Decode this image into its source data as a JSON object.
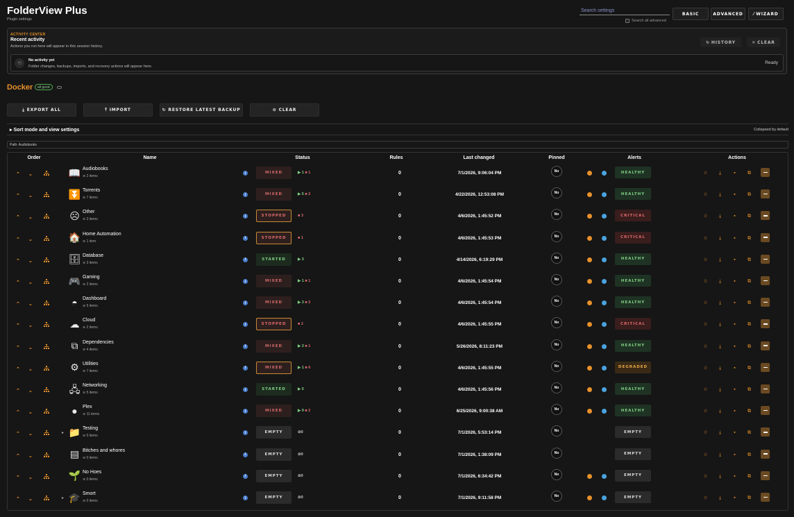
{
  "header": {
    "title": "FolderView Plus",
    "subtitle": "Plugin settings",
    "search_placeholder": "Search settings",
    "search_all_label": "Search all advanced",
    "modes": [
      "BASIC",
      "ADVANCED",
      "WIZARD"
    ]
  },
  "activity": {
    "kicker": "ACTIVITY CENTER",
    "title": "Recent activity",
    "desc": "Actions you run here will appear in this session history.",
    "history_label": "HISTORY",
    "clear_label": "CLEAR",
    "empty_title": "No activity yet",
    "empty_desc": "Folder changes, backups, imports, and recovery actions will appear here.",
    "state": "Ready"
  },
  "docker": {
    "title": "Docker",
    "badge": "all good",
    "buttons": [
      "EXPORT ALL",
      "IMPORT",
      "RESTORE LATEST BACKUP",
      "CLEAR"
    ],
    "sort_label": "Sort mode and view settings",
    "sort_note": "Collapsed by default",
    "path": "Path: Audiobooks"
  },
  "columns": [
    "Order",
    "Name",
    "Status",
    "Rules",
    "Last changed",
    "Pinned",
    "Alerts",
    "Actions"
  ],
  "pinned_label": "No",
  "rows": [
    {
      "name": "Audiobooks",
      "count": "2 items",
      "icon": "book-icon",
      "glyph": "📖",
      "status": "MIXED",
      "status_kind": "st-mixed",
      "run": "1",
      "stop": "1",
      "rules": "0",
      "changed": "7/1/2026, 9:06:04 PM",
      "alert": "HEALTHY",
      "alert_kind": "al-healthy",
      "expander": false,
      "indicators": true
    },
    {
      "name": "Torrents",
      "count": "7 items",
      "icon": "download-icon",
      "glyph": "⏬",
      "status": "MIXED",
      "status_kind": "st-mixed",
      "run": "5",
      "stop": "2",
      "rules": "0",
      "changed": "4/22/2026, 12:53:08 PM",
      "alert": "HEALTHY",
      "alert_kind": "al-healthy",
      "expander": false,
      "indicators": true
    },
    {
      "name": "Other",
      "count": "3 items",
      "icon": "misc-icon",
      "glyph": "☹",
      "status": "STOPPED",
      "status_kind": "st-stopped",
      "run": "",
      "stop": "3",
      "rules": "0",
      "changed": "4/6/2026, 1:45:52 PM",
      "alert": "CRITICAL",
      "alert_kind": "al-critical",
      "expander": false,
      "indicators": true
    },
    {
      "name": "Home Automation",
      "count": "1 item",
      "icon": "home-icon",
      "glyph": "🏠",
      "status": "STOPPED",
      "status_kind": "st-stopped",
      "run": "",
      "stop": "1",
      "rules": "0",
      "changed": "4/6/2026, 1:45:53 PM",
      "alert": "CRITICAL",
      "alert_kind": "al-critical",
      "expander": false,
      "indicators": true
    },
    {
      "name": "Database",
      "count": "3 items",
      "icon": "database-icon",
      "glyph": "🗄",
      "status": "STARTED",
      "status_kind": "st-started",
      "run": "3",
      "stop": "",
      "rules": "0",
      "changed": "4/14/2026, 6:19:29 PM",
      "alert": "HEALTHY",
      "alert_kind": "al-healthy",
      "expander": false,
      "indicators": true
    },
    {
      "name": "Gaming",
      "count": "2 items",
      "icon": "gamepad-icon",
      "glyph": "🎮",
      "status": "MIXED",
      "status_kind": "st-mixed",
      "run": "1",
      "stop": "1",
      "rules": "0",
      "changed": "4/6/2026, 1:45:54 PM",
      "alert": "HEALTHY",
      "alert_kind": "al-healthy",
      "expander": false,
      "indicators": true
    },
    {
      "name": "Dashboard",
      "count": "5 items",
      "icon": "gauge-icon",
      "glyph": "◓",
      "status": "MIXED",
      "status_kind": "st-mixed",
      "run": "3",
      "stop": "2",
      "rules": "0",
      "changed": "4/6/2026, 1:45:54 PM",
      "alert": "HEALTHY",
      "alert_kind": "al-healthy",
      "expander": false,
      "indicators": true
    },
    {
      "name": "Cloud",
      "count": "2 items",
      "icon": "cloud-icon",
      "glyph": "☁",
      "status": "STOPPED",
      "status_kind": "st-stopped",
      "run": "",
      "stop": "2",
      "rules": "0",
      "changed": "4/6/2026, 1:45:55 PM",
      "alert": "CRITICAL",
      "alert_kind": "al-critical",
      "expander": false,
      "indicators": true
    },
    {
      "name": "Dependencies",
      "count": "4 items",
      "icon": "puzzle-icon",
      "glyph": "⧉",
      "status": "MIXED",
      "status_kind": "st-mixed",
      "run": "3",
      "stop": "1",
      "rules": "0",
      "changed": "5/26/2026, 8:11:23 PM",
      "alert": "HEALTHY",
      "alert_kind": "al-healthy",
      "expander": false,
      "indicators": true
    },
    {
      "name": "Utilities",
      "count": "7 items",
      "icon": "cog-icon",
      "glyph": "⚙",
      "status": "MIXED",
      "status_kind": "st-mixed-o",
      "run": "1",
      "stop": "6",
      "rules": "0",
      "changed": "4/6/2026, 1:45:55 PM",
      "alert": "DEGRADED",
      "alert_kind": "al-degraded",
      "expander": false,
      "indicators": true
    },
    {
      "name": "Networking",
      "count": "5 items",
      "icon": "network-icon",
      "glyph": "🖧",
      "status": "STARTED",
      "status_kind": "st-started",
      "run": "5",
      "stop": "",
      "rules": "0",
      "changed": "4/6/2026, 1:45:56 PM",
      "alert": "HEALTHY",
      "alert_kind": "al-healthy",
      "expander": false,
      "indicators": true
    },
    {
      "name": "Plex",
      "count": "11 items",
      "icon": "plex-icon",
      "glyph": "●",
      "status": "MIXED",
      "status_kind": "st-mixed",
      "run": "9",
      "stop": "2",
      "rules": "0",
      "changed": "6/25/2026, 9:00:38 AM",
      "alert": "HEALTHY",
      "alert_kind": "al-healthy",
      "expander": false,
      "indicators": true
    },
    {
      "name": "Testing",
      "count": "0 items",
      "icon": "folder-icon",
      "glyph": "📁",
      "status": "EMPTY",
      "status_kind": "st-empty",
      "empty": "0",
      "rules": "0",
      "changed": "7/1/2026, 5:53:14 PM",
      "alert": "EMPTY",
      "alert_kind": "al-empty",
      "expander": true,
      "indicators": false
    },
    {
      "name": "Bitches and whores",
      "count": "0 items",
      "icon": "terminal-icon",
      "glyph": "▤",
      "status": "EMPTY",
      "status_kind": "st-empty",
      "empty": "0",
      "rules": "0",
      "changed": "7/1/2026, 1:38:09 PM",
      "alert": "EMPTY",
      "alert_kind": "al-empty",
      "expander": false,
      "indicators": false
    },
    {
      "name": "No Hoes",
      "count": "0 items",
      "icon": "sprout-icon",
      "glyph": "🌱",
      "status": "EMPTY",
      "status_kind": "st-empty",
      "empty": "0",
      "rules": "0",
      "changed": "7/1/2026, 6:34:42 PM",
      "alert": "EMPTY",
      "alert_kind": "al-empty",
      "expander": false,
      "indicators": true
    },
    {
      "name": "Smort",
      "count": "0 items",
      "icon": "graduation-cap-icon",
      "glyph": "🎓",
      "status": "EMPTY",
      "status_kind": "st-empty",
      "empty": "0",
      "rules": "0",
      "changed": "7/1/2026, 9:11:58 PM",
      "alert": "EMPTY",
      "alert_kind": "al-empty",
      "expander": true,
      "indicators": true
    }
  ]
}
